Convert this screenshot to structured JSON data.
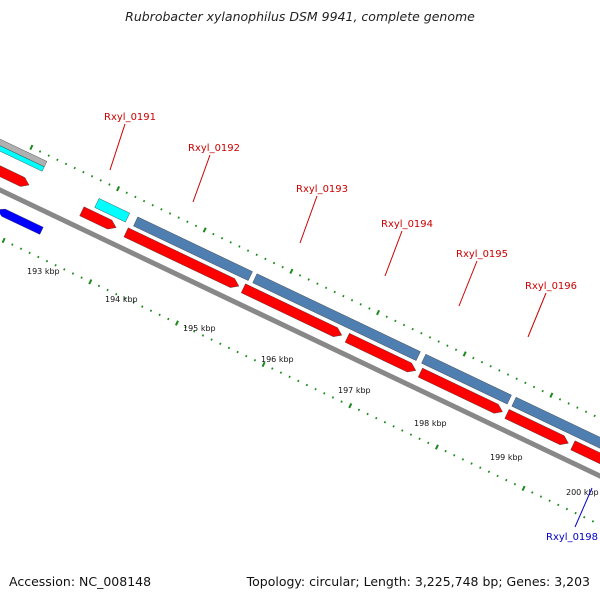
{
  "title": "Rubrobacter xylanophilus DSM 9941, complete genome",
  "footer": {
    "accession": "Accession: NC_008148",
    "summary": "Topology: circular; Length: 3,225,748 bp; Genes: 3,203"
  },
  "colors": {
    "backbone": "#888888",
    "forward_gene": "#ff0000",
    "reverse_gene": "#0000ff",
    "operon": "#4f7fb0",
    "rna": "#00ffff",
    "tick": "#1a8a1a",
    "label_forward": "#cc0000",
    "label_reverse": "#0000cc"
  },
  "scale_ticks": [
    "193 kbp",
    "194 kbp",
    "195 kbp",
    "196 kbp",
    "197 kbp",
    "198 kbp",
    "199 kbp",
    "200 kbp"
  ],
  "gene_labels": [
    {
      "name": "Rxyl_0191",
      "strand": "forward"
    },
    {
      "name": "Rxyl_0192",
      "strand": "forward"
    },
    {
      "name": "Rxyl_0193",
      "strand": "forward"
    },
    {
      "name": "Rxyl_0194",
      "strand": "forward"
    },
    {
      "name": "Rxyl_0195",
      "strand": "forward"
    },
    {
      "name": "Rxyl_0196",
      "strand": "forward"
    },
    {
      "name": "Rxyl_0198",
      "strand": "reverse"
    }
  ]
}
